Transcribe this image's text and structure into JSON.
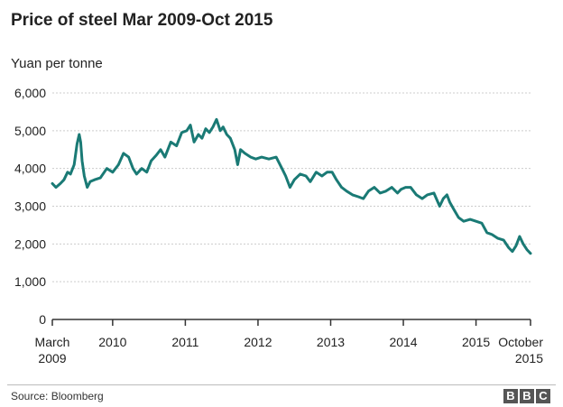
{
  "chart_data": {
    "type": "line",
    "title": "Price of steel Mar 2009-Oct 2015",
    "ylabel": "Yuan per tonne",
    "xlabel": "",
    "ylim": [
      0,
      6000
    ],
    "y_ticks": [
      "0",
      "1,000",
      "2,000",
      "3,000",
      "4,000",
      "5,000",
      "6,000"
    ],
    "y_tick_values": [
      0,
      1000,
      2000,
      3000,
      4000,
      5000,
      6000
    ],
    "x_ticks": [
      {
        "value": 2009.17,
        "line1": "March",
        "line2": "2009"
      },
      {
        "value": 2010.0,
        "line1": "2010",
        "line2": ""
      },
      {
        "value": 2011.0,
        "line1": "2011",
        "line2": ""
      },
      {
        "value": 2012.0,
        "line1": "2012",
        "line2": ""
      },
      {
        "value": 2013.0,
        "line1": "2013",
        "line2": ""
      },
      {
        "value": 2014.0,
        "line1": "2014",
        "line2": ""
      },
      {
        "value": 2015.0,
        "line1": "2015",
        "line2": ""
      },
      {
        "value": 2015.75,
        "line1": "October",
        "line2": "2015"
      }
    ],
    "xlim": [
      2009.17,
      2015.75
    ],
    "grid": true,
    "line_color": "#1a7a75",
    "series": [
      {
        "x": [
          2009.17,
          2009.22,
          2009.28,
          2009.33,
          2009.38,
          2009.42,
          2009.47,
          2009.51,
          2009.54,
          2009.56,
          2009.58,
          2009.61,
          2009.65,
          2009.69,
          2009.75,
          2009.83,
          2009.92,
          2010.0,
          2010.08,
          2010.15,
          2010.22,
          2010.28,
          2010.33,
          2010.4,
          2010.47,
          2010.53,
          2010.6,
          2010.66,
          2010.72,
          2010.8,
          2010.88,
          2010.95,
          2011.02,
          2011.07,
          2011.12,
          2011.18,
          2011.23,
          2011.28,
          2011.33,
          2011.38,
          2011.43,
          2011.48,
          2011.52,
          2011.57,
          2011.62,
          2011.68,
          2011.72,
          2011.76,
          2011.82,
          2011.9,
          2011.97,
          2012.05,
          2012.15,
          2012.25,
          2012.33,
          2012.38,
          2012.44,
          2012.5,
          2012.58,
          2012.66,
          2012.72,
          2012.8,
          2012.88,
          2012.95,
          2013.02,
          2013.08,
          2013.15,
          2013.22,
          2013.3,
          2013.38,
          2013.45,
          2013.52,
          2013.6,
          2013.68,
          2013.76,
          2013.84,
          2013.92,
          2013.97,
          2014.03,
          2014.1,
          2014.18,
          2014.26,
          2014.33,
          2014.42,
          2014.5,
          2014.55,
          2014.6,
          2014.64,
          2014.7,
          2014.76,
          2014.83,
          2014.92,
          2015.0,
          2015.08,
          2015.15,
          2015.22,
          2015.3,
          2015.38,
          2015.45,
          2015.5,
          2015.55,
          2015.6,
          2015.65,
          2015.7,
          2015.75
        ],
        "y": [
          3600,
          3500,
          3600,
          3700,
          3900,
          3850,
          4100,
          4650,
          4900,
          4700,
          4200,
          3800,
          3500,
          3650,
          3700,
          3750,
          4000,
          3900,
          4100,
          4400,
          4300,
          4000,
          3850,
          4000,
          3900,
          4200,
          4350,
          4500,
          4300,
          4700,
          4600,
          4950,
          5000,
          5150,
          4700,
          4900,
          4800,
          5050,
          4950,
          5100,
          5300,
          5000,
          5100,
          4900,
          4800,
          4500,
          4100,
          4500,
          4400,
          4300,
          4250,
          4300,
          4250,
          4300,
          4000,
          3800,
          3500,
          3700,
          3850,
          3800,
          3650,
          3900,
          3800,
          3900,
          3900,
          3700,
          3500,
          3400,
          3300,
          3250,
          3200,
          3400,
          3500,
          3350,
          3400,
          3500,
          3350,
          3450,
          3500,
          3500,
          3300,
          3200,
          3300,
          3350,
          3000,
          3200,
          3300,
          3100,
          2900,
          2700,
          2600,
          2650,
          2600,
          2550,
          2300,
          2250,
          2150,
          2100,
          1900,
          1800,
          1950,
          2200,
          2000,
          1850,
          1750
        ]
      }
    ]
  },
  "footer": {
    "source": "Source: Bloomberg",
    "logo": [
      "B",
      "B",
      "C"
    ]
  }
}
